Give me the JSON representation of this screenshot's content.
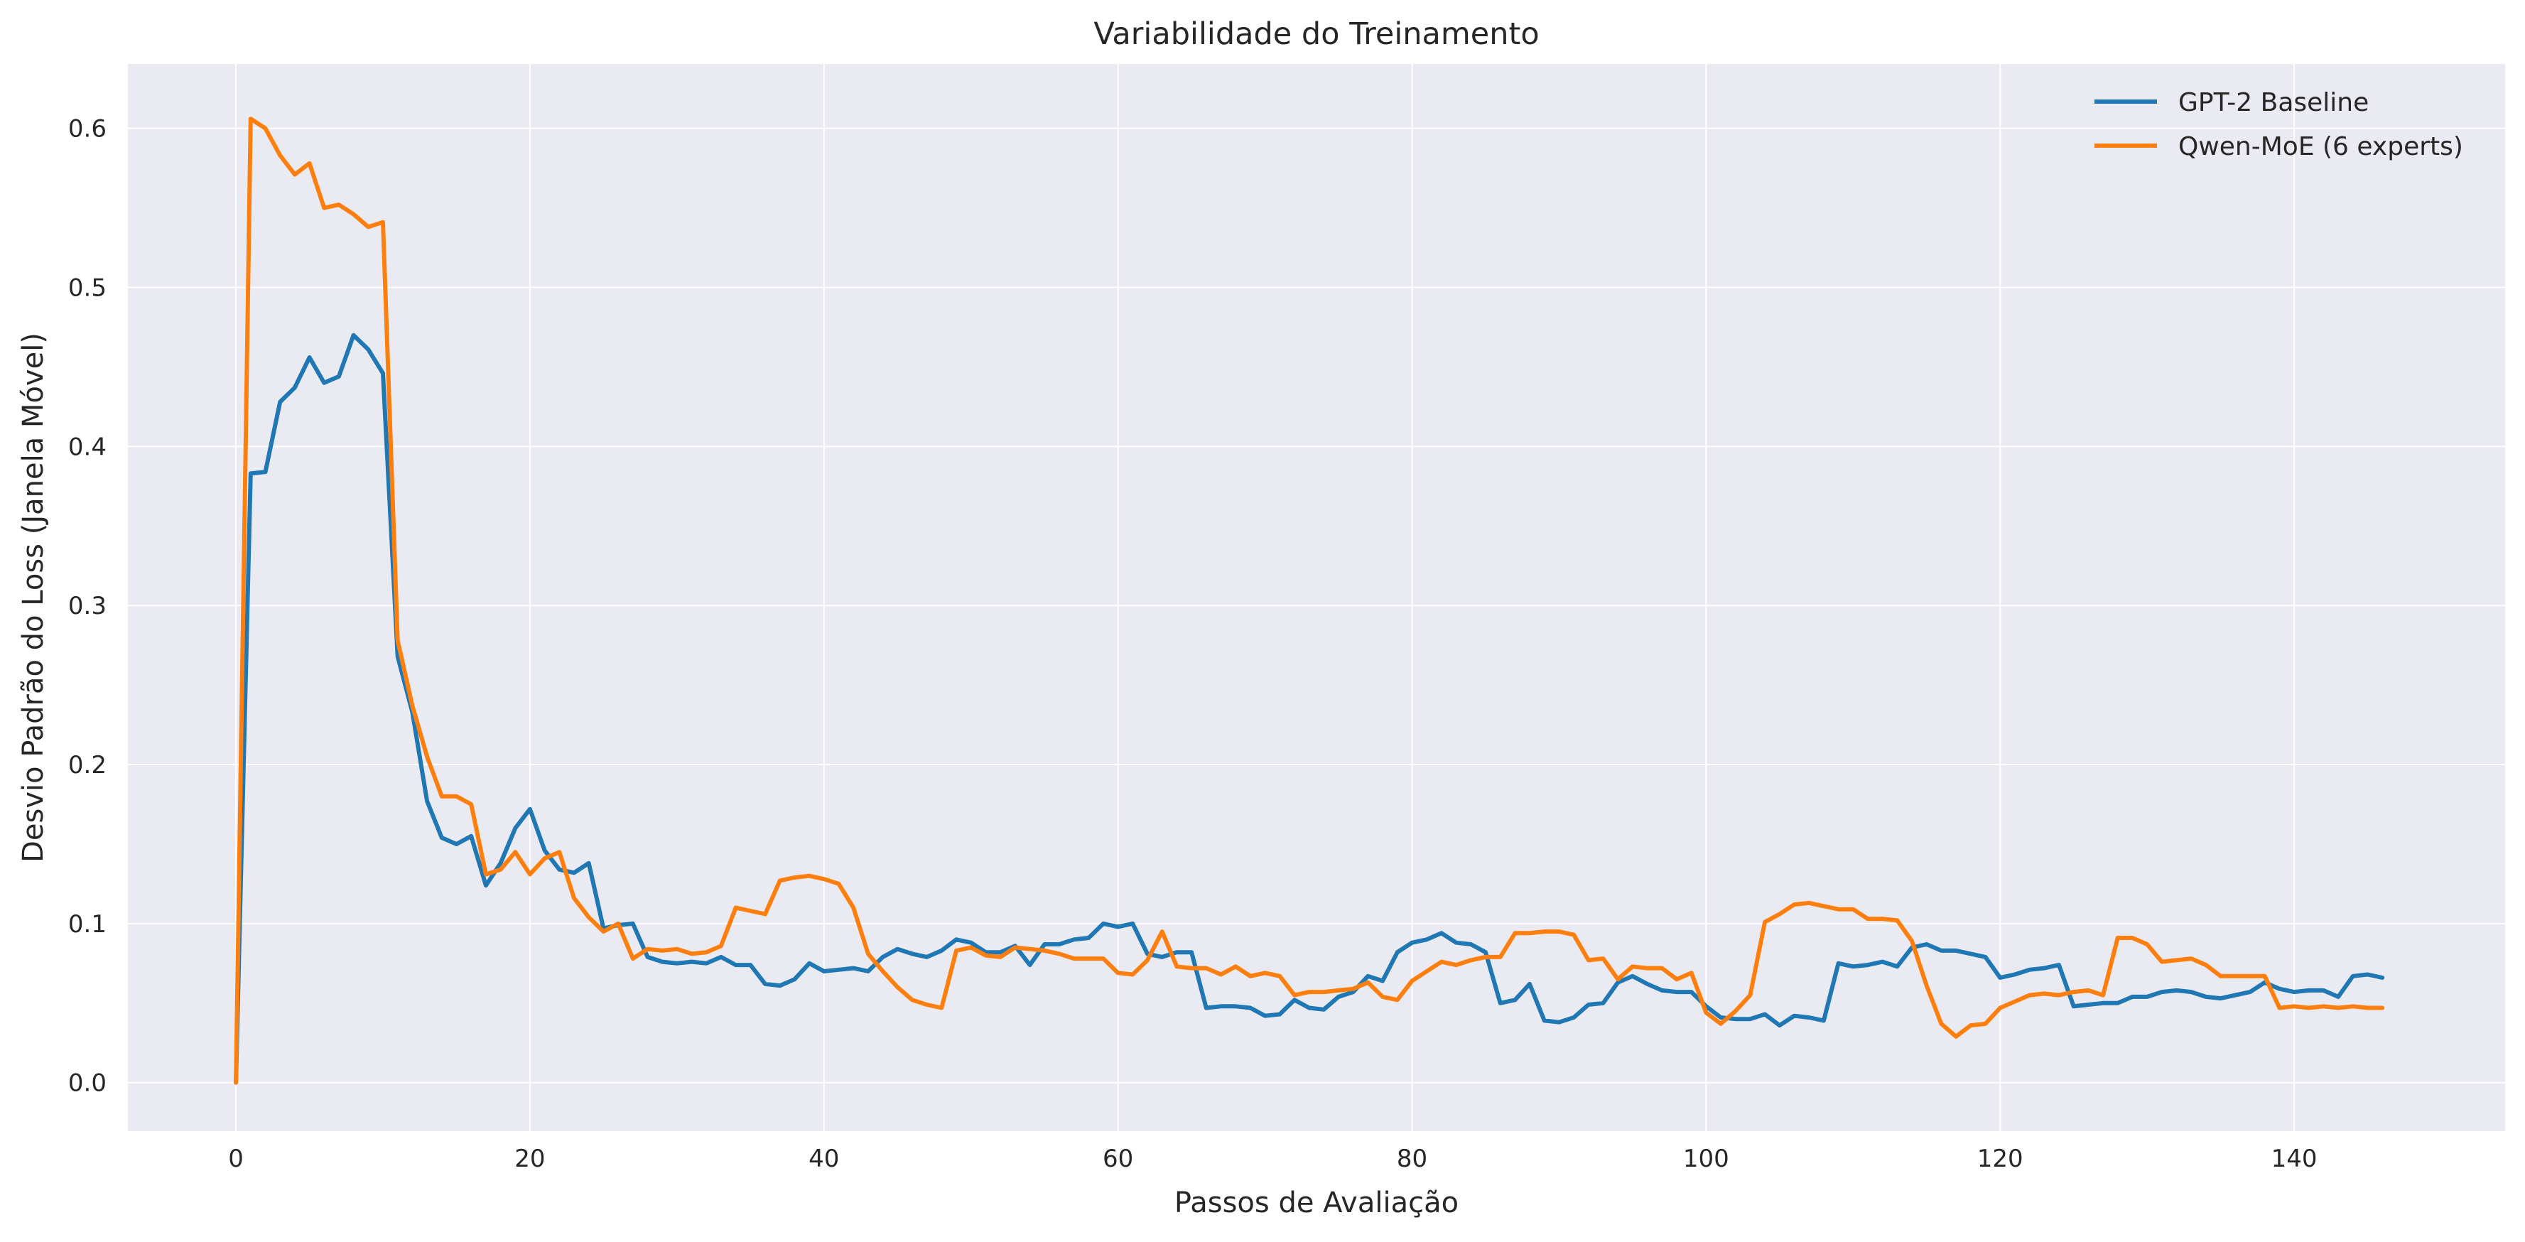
{
  "chart_data": {
    "type": "line",
    "title": "Variabilidade do Treinamento",
    "xlabel": "Passos de Avaliação",
    "ylabel": "Desvio Padrão do Loss (Janela Móvel)",
    "xlim": [
      -7.35,
      154.35
    ],
    "ylim": [
      -0.0305,
      0.6405
    ],
    "xticks": [
      0,
      20,
      40,
      60,
      80,
      100,
      120,
      140
    ],
    "yticks": [
      0.0,
      0.1,
      0.2,
      0.3,
      0.4,
      0.5,
      0.6
    ],
    "xtick_labels": [
      "0",
      "20",
      "40",
      "60",
      "80",
      "100",
      "120",
      "140"
    ],
    "ytick_labels": [
      "0.0",
      "0.1",
      "0.2",
      "0.3",
      "0.4",
      "0.5",
      "0.6"
    ],
    "grid": true,
    "legend_position": "top-right",
    "background": "#eaeaf2",
    "x": [
      0,
      1,
      2,
      3,
      4,
      5,
      6,
      7,
      8,
      9,
      10,
      11,
      12,
      13,
      14,
      15,
      16,
      17,
      18,
      19,
      20,
      21,
      22,
      23,
      24,
      25,
      26,
      27,
      28,
      29,
      30,
      31,
      32,
      33,
      34,
      35,
      36,
      37,
      38,
      39,
      40,
      41,
      42,
      43,
      44,
      45,
      46,
      47,
      48,
      49,
      50,
      51,
      52,
      53,
      54,
      55,
      56,
      57,
      58,
      59,
      60,
      61,
      62,
      63,
      64,
      65,
      66,
      67,
      68,
      69,
      70,
      71,
      72,
      73,
      74,
      75,
      76,
      77,
      78,
      79,
      80,
      81,
      82,
      83,
      84,
      85,
      86,
      87,
      88,
      89,
      90,
      91,
      92,
      93,
      94,
      95,
      96,
      97,
      98,
      99,
      100,
      101,
      102,
      103,
      104,
      105,
      106,
      107,
      108,
      109,
      110,
      111,
      112,
      113,
      114,
      115,
      116,
      117,
      118,
      119,
      120,
      121,
      122,
      123,
      124,
      125,
      126,
      127,
      128,
      129,
      130,
      131,
      132,
      133,
      134,
      135,
      136,
      137,
      138,
      139,
      140,
      141,
      142,
      143,
      144,
      145,
      146
    ],
    "series": [
      {
        "name": "GPT-2 Baseline",
        "color": "#1f77b4",
        "values": [
          0.0,
          0.383,
          0.384,
          0.428,
          0.437,
          0.456,
          0.44,
          0.444,
          0.47,
          0.461,
          0.446,
          0.268,
          0.233,
          0.177,
          0.154,
          0.15,
          0.155,
          0.124,
          0.138,
          0.16,
          0.172,
          0.146,
          0.134,
          0.132,
          0.138,
          0.097,
          0.099,
          0.1,
          0.079,
          0.076,
          0.075,
          0.076,
          0.075,
          0.079,
          0.074,
          0.074,
          0.062,
          0.061,
          0.065,
          0.075,
          0.07,
          0.071,
          0.072,
          0.07,
          0.079,
          0.084,
          0.081,
          0.079,
          0.083,
          0.09,
          0.088,
          0.082,
          0.082,
          0.086,
          0.074,
          0.087,
          0.087,
          0.09,
          0.091,
          0.1,
          0.098,
          0.1,
          0.081,
          0.079,
          0.082,
          0.082,
          0.047,
          0.048,
          0.048,
          0.047,
          0.042,
          0.043,
          0.052,
          0.047,
          0.046,
          0.054,
          0.057,
          0.067,
          0.064,
          0.082,
          0.088,
          0.09,
          0.094,
          0.088,
          0.087,
          0.082,
          0.05,
          0.052,
          0.062,
          0.039,
          0.038,
          0.041,
          0.049,
          0.05,
          0.063,
          0.067,
          0.062,
          0.058,
          0.057,
          0.057,
          0.048,
          0.041,
          0.04,
          0.04,
          0.043,
          0.036,
          0.042,
          0.041,
          0.039,
          0.075,
          0.073,
          0.074,
          0.076,
          0.073,
          0.085,
          0.087,
          0.083,
          0.083,
          0.081,
          0.079,
          0.066,
          0.068,
          0.071,
          0.072,
          0.074,
          0.048,
          0.049,
          0.05,
          0.05,
          0.054,
          0.054,
          0.057,
          0.058,
          0.057,
          0.054,
          0.053,
          0.055,
          0.057,
          0.063,
          0.059,
          0.057,
          0.058,
          0.058,
          0.054,
          0.067,
          0.068,
          0.066
        ]
      },
      {
        "name": "Qwen-MoE (6 experts)",
        "color": "#ff7f0e",
        "values": [
          0.0,
          0.606,
          0.6,
          0.583,
          0.571,
          0.578,
          0.55,
          0.552,
          0.546,
          0.538,
          0.541,
          0.278,
          0.237,
          0.205,
          0.18,
          0.18,
          0.175,
          0.131,
          0.134,
          0.145,
          0.131,
          0.141,
          0.145,
          0.116,
          0.104,
          0.095,
          0.1,
          0.078,
          0.084,
          0.083,
          0.084,
          0.081,
          0.082,
          0.086,
          0.11,
          0.108,
          0.106,
          0.127,
          0.129,
          0.13,
          0.128,
          0.125,
          0.11,
          0.081,
          0.07,
          0.06,
          0.052,
          0.049,
          0.047,
          0.083,
          0.085,
          0.08,
          0.079,
          0.085,
          0.084,
          0.083,
          0.081,
          0.078,
          0.078,
          0.078,
          0.069,
          0.068,
          0.077,
          0.095,
          0.073,
          0.072,
          0.072,
          0.068,
          0.073,
          0.067,
          0.069,
          0.067,
          0.055,
          0.057,
          0.057,
          0.058,
          0.059,
          0.063,
          0.054,
          0.052,
          0.064,
          0.07,
          0.076,
          0.074,
          0.077,
          0.079,
          0.079,
          0.094,
          0.094,
          0.095,
          0.095,
          0.093,
          0.077,
          0.078,
          0.065,
          0.073,
          0.072,
          0.072,
          0.065,
          0.069,
          0.044,
          0.037,
          0.045,
          0.055,
          0.101,
          0.106,
          0.112,
          0.113,
          0.111,
          0.109,
          0.109,
          0.103,
          0.103,
          0.102,
          0.089,
          0.061,
          0.037,
          0.029,
          0.036,
          0.037,
          0.047,
          0.051,
          0.055,
          0.056,
          0.055,
          0.057,
          0.058,
          0.055,
          0.091,
          0.091,
          0.087,
          0.076,
          0.077,
          0.078,
          0.074,
          0.067,
          0.067,
          0.067,
          0.067,
          0.047,
          0.048,
          0.047,
          0.048,
          0.047,
          0.048,
          0.047,
          0.047
        ]
      }
    ]
  }
}
